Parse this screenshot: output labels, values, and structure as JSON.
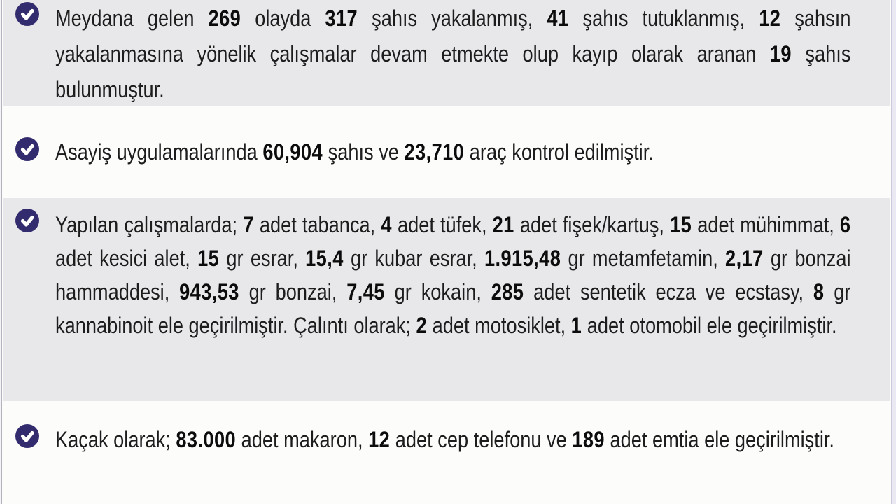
{
  "theme": {
    "accent_color": "#322b6e",
    "stripe_color": "#e8e7e9",
    "row_white_color": "#fcfcfb",
    "text_color": "#1d1d1e"
  },
  "icons": {
    "bullet": "check-circle"
  },
  "items": [
    {
      "id": "incidents",
      "runs": [
        {
          "t": "Meydana gelen ",
          "b": false
        },
        {
          "t": "269",
          "b": true
        },
        {
          "t": " olayda ",
          "b": false
        },
        {
          "t": "317",
          "b": true
        },
        {
          "t": " şahıs yakalanmış, ",
          "b": false
        },
        {
          "t": "41",
          "b": true
        },
        {
          "t": " şahıs tutuklanmış, ",
          "b": false
        },
        {
          "t": "12",
          "b": true
        },
        {
          "t": " şahsın yakalanmasına yönelik çalışmalar devam etmekte olup kayıp olarak aranan ",
          "b": false
        },
        {
          "t": "19",
          "b": true
        },
        {
          "t": " şahıs bulunmuştur.",
          "b": false
        }
      ]
    },
    {
      "id": "checks",
      "runs": [
        {
          "t": "Asayiş uygulamalarında ",
          "b": false
        },
        {
          "t": "60,904",
          "b": true
        },
        {
          "t": " şahıs ve ",
          "b": false
        },
        {
          "t": "23,710",
          "b": true
        },
        {
          "t": " araç kontrol edilmiştir.",
          "b": false
        }
      ]
    },
    {
      "id": "seizures",
      "runs": [
        {
          "t": "Yapılan çalışmalarda; ",
          "b": false
        },
        {
          "t": "7",
          "b": true
        },
        {
          "t": " adet tabanca, ",
          "b": false
        },
        {
          "t": "4",
          "b": true
        },
        {
          "t": " adet tüfek, ",
          "b": false
        },
        {
          "t": "21",
          "b": true
        },
        {
          "t": " adet fişek/kartuş, ",
          "b": false
        },
        {
          "t": "15",
          "b": true
        },
        {
          "t": " adet mühimmat, ",
          "b": false
        },
        {
          "t": "6",
          "b": true
        },
        {
          "t": " adet kesici alet, ",
          "b": false
        },
        {
          "t": "15",
          "b": true
        },
        {
          "t": " gr esrar, ",
          "b": false
        },
        {
          "t": "15,4",
          "b": true
        },
        {
          "t": " gr kubar esrar, ",
          "b": false
        },
        {
          "t": "1.915,48",
          "b": true
        },
        {
          "t": " gr metamfetamin, ",
          "b": false
        },
        {
          "t": "2,17",
          "b": true
        },
        {
          "t": " gr bonzai hammaddesi, ",
          "b": false
        },
        {
          "t": "943,53",
          "b": true
        },
        {
          "t": " gr bonzai, ",
          "b": false
        },
        {
          "t": "7,45",
          "b": true
        },
        {
          "t": " gr kokain, ",
          "b": false
        },
        {
          "t": "285",
          "b": true
        },
        {
          "t": " adet sentetik ecza ve ecstasy, ",
          "b": false
        },
        {
          "t": "8",
          "b": true
        },
        {
          "t": " gr kannabinoit ele geçirilmiştir. Çalıntı olarak; ",
          "b": false
        },
        {
          "t": "2",
          "b": true
        },
        {
          "t": " adet motosiklet, ",
          "b": false
        },
        {
          "t": "1",
          "b": true
        },
        {
          "t": " adet otomobil ele geçirilmiştir.",
          "b": false
        }
      ]
    },
    {
      "id": "contraband",
      "runs": [
        {
          "t": "Kaçak olarak; ",
          "b": false
        },
        {
          "t": "83.000",
          "b": true
        },
        {
          "t": " adet makaron, ",
          "b": false
        },
        {
          "t": "12",
          "b": true
        },
        {
          "t": " adet cep telefonu ve ",
          "b": false
        },
        {
          "t": "189",
          "b": true
        },
        {
          "t": " adet emtia ele geçirilmiştir.",
          "b": false
        }
      ]
    }
  ]
}
